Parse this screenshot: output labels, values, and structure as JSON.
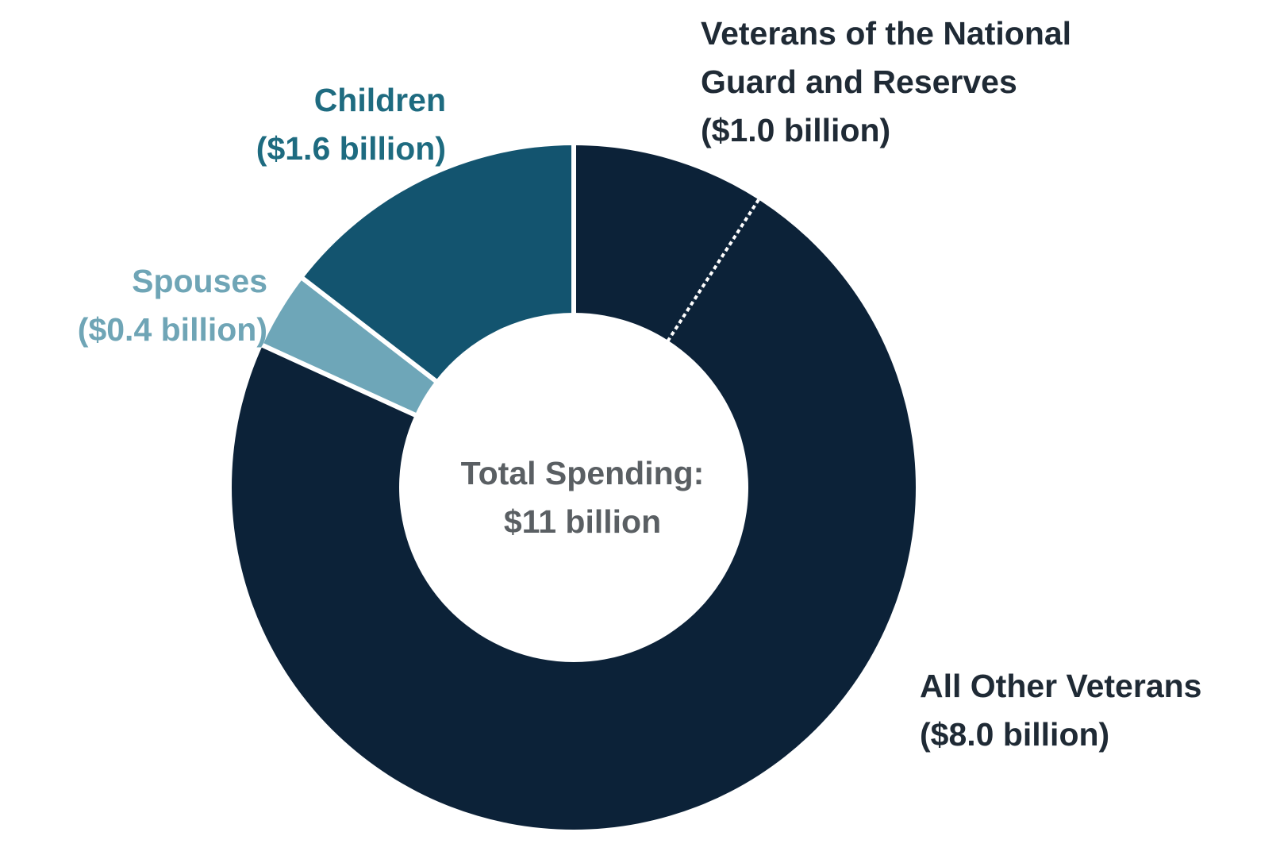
{
  "colors": {
    "all_other_veterans": "#0c2238",
    "national_guard": "#0c2238",
    "spouses": "#6ea6b8",
    "children": "#13546f",
    "separator": "#ffffff",
    "label_dark": "#1f2a35",
    "label_children": "#1e6b80",
    "label_spouses": "#6fa5b6",
    "center_text": "#5a5f63"
  },
  "chart_data": {
    "type": "pie",
    "style": "donut",
    "center_label": {
      "line1": "Total Spending:",
      "line2": "$11 billion"
    },
    "unit": "billion dollars",
    "slices": [
      {
        "key": "national_guard",
        "label_line1": "Veterans of the National",
        "label_line2": "Guard and Reserves",
        "value_label": "($1.0 billion)",
        "value": 1.0
      },
      {
        "key": "all_other_veterans",
        "label_line1": "All Other Veterans",
        "value_label": "($8.0 billion)",
        "value": 8.0
      },
      {
        "key": "spouses",
        "label_line1": "Spouses",
        "value_label": "($0.4 billion)",
        "value": 0.4
      },
      {
        "key": "children",
        "label_line1": "Children",
        "value_label": "($1.6 billion)",
        "value": 1.6
      }
    ]
  }
}
